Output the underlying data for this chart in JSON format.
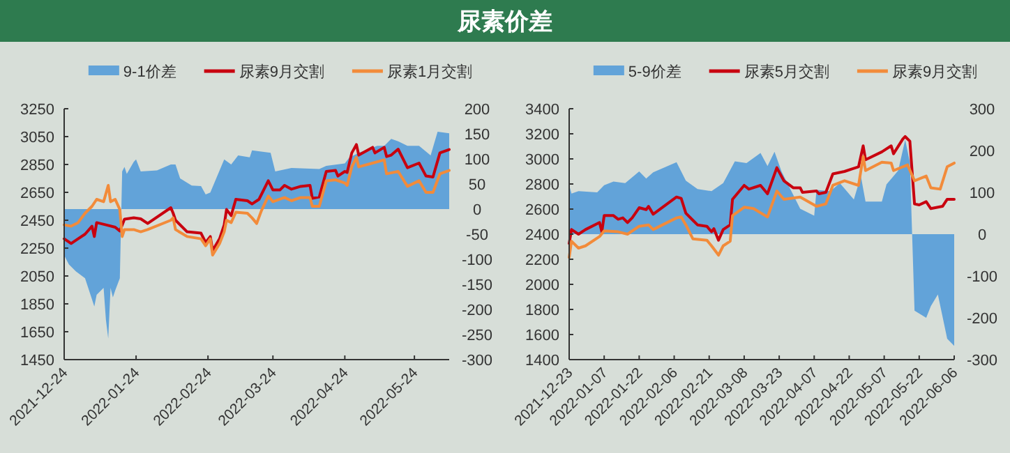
{
  "chart_data": [
    {
      "type": "line",
      "title": "尿素价差",
      "legend": "top",
      "xlim": [
        "2021-12-24",
        "2022-06-08"
      ],
      "xticks": [
        "2021-12-24",
        "2022-01-24",
        "2022-02-24",
        "2022-03-24",
        "2022-04-24",
        "2022-05-24"
      ],
      "ylim": [
        1450,
        3250
      ],
      "yticks": [
        1450,
        1650,
        1850,
        2050,
        2250,
        2450,
        2650,
        2850,
        3050,
        3250
      ],
      "y2lim": [
        -300,
        200
      ],
      "y2ticks": [
        -300,
        -250,
        -200,
        -150,
        -100,
        -50,
        0,
        50,
        100,
        150,
        200
      ],
      "series": [
        {
          "name": "9-1价差",
          "type": "area",
          "axis": "y2",
          "color": "#62a3d9",
          "x": [
            "2021-12-24",
            "2021-12-26",
            "2021-12-29",
            "2022-01-02",
            "2022-01-04",
            "2022-01-06",
            "2022-01-07",
            "2022-01-10",
            "2022-01-11",
            "2022-01-12",
            "2022-01-13",
            "2022-01-14",
            "2022-01-15",
            "2022-01-17",
            "2022-01-18",
            "2022-01-19",
            "2022-01-20",
            "2022-01-23",
            "2022-01-24",
            "2022-01-26",
            "2022-02-02",
            "2022-02-08",
            "2022-02-10",
            "2022-02-12",
            "2022-02-17",
            "2022-02-21",
            "2022-02-23",
            "2022-02-25",
            "2022-03-03",
            "2022-03-06",
            "2022-03-09",
            "2022-03-14",
            "2022-03-15",
            "2022-03-23",
            "2022-03-25",
            "2022-04-01",
            "2022-04-13",
            "2022-04-16",
            "2022-04-24",
            "2022-04-26",
            "2022-04-30",
            "2022-05-08",
            "2022-05-11",
            "2022-05-14",
            "2022-05-17",
            "2022-05-21",
            "2022-05-26",
            "2022-05-31",
            "2022-06-03",
            "2022-06-08"
          ],
          "values": [
            -92,
            -110,
            -124,
            -138,
            -166,
            -194,
            -171,
            -157,
            -221,
            -258,
            -157,
            -176,
            -162,
            -138,
            75,
            84,
            70,
            94,
            99,
            75,
            77,
            89,
            89,
            61,
            47,
            46,
            29,
            33,
            99,
            89,
            107,
            103,
            117,
            112,
            75,
            82,
            80,
            86,
            91,
            103,
            112,
            126,
            126,
            140,
            135,
            126,
            126,
            107,
            154,
            151
          ]
        },
        {
          "name": "尿素9月交割",
          "color": "#c8000f",
          "x": [
            "2021-12-24",
            "2021-12-27",
            "2021-12-30",
            "2022-01-02",
            "2022-01-05",
            "2022-01-06",
            "2022-01-07",
            "2022-01-11",
            "2022-01-15",
            "2022-01-17",
            "2022-01-19",
            "2022-01-23",
            "2022-01-26",
            "2022-01-29",
            "2022-02-08",
            "2022-02-09",
            "2022-02-10",
            "2022-02-15",
            "2022-02-21",
            "2022-02-23",
            "2022-02-25",
            "2022-02-26",
            "2022-03-01",
            "2022-03-03",
            "2022-03-04",
            "2022-03-06",
            "2022-03-08",
            "2022-03-13",
            "2022-03-15",
            "2022-03-18",
            "2022-03-22",
            "2022-03-24",
            "2022-03-27",
            "2022-03-29",
            "2022-04-01",
            "2022-04-05",
            "2022-04-09",
            "2022-04-10",
            "2022-04-13",
            "2022-04-16",
            "2022-04-20",
            "2022-04-21",
            "2022-04-24",
            "2022-04-25",
            "2022-04-27",
            "2022-04-29",
            "2022-04-30",
            "2022-05-06",
            "2022-05-07",
            "2022-05-11",
            "2022-05-12",
            "2022-05-14",
            "2022-05-17",
            "2022-05-21",
            "2022-05-26",
            "2022-05-29",
            "2022-06-01",
            "2022-06-04",
            "2022-06-08"
          ],
          "values": [
            2317,
            2283,
            2317,
            2350,
            2407,
            2333,
            2433,
            2417,
            2400,
            2373,
            2457,
            2467,
            2460,
            2427,
            2540,
            2500,
            2450,
            2367,
            2357,
            2290,
            2333,
            2233,
            2317,
            2417,
            2527,
            2483,
            2600,
            2590,
            2567,
            2600,
            2733,
            2667,
            2667,
            2700,
            2673,
            2693,
            2700,
            2607,
            2617,
            2800,
            2807,
            2767,
            2800,
            2793,
            2933,
            2993,
            2917,
            2973,
            2933,
            2973,
            2907,
            2917,
            2960,
            2827,
            2860,
            2767,
            2760,
            2933,
            2957
          ]
        },
        {
          "name": "尿素1月交割",
          "color": "#f28b3a",
          "x": [
            "2021-12-24",
            "2021-12-27",
            "2021-12-30",
            "2022-01-02",
            "2022-01-05",
            "2022-01-07",
            "2022-01-10",
            "2022-01-12",
            "2022-01-13",
            "2022-01-15",
            "2022-01-17",
            "2022-01-18",
            "2022-01-19",
            "2022-01-23",
            "2022-01-26",
            "2022-01-29",
            "2022-02-08",
            "2022-02-09",
            "2022-02-10",
            "2022-02-15",
            "2022-02-21",
            "2022-02-23",
            "2022-02-25",
            "2022-02-26",
            "2022-03-01",
            "2022-03-03",
            "2022-03-04",
            "2022-03-06",
            "2022-03-08",
            "2022-03-13",
            "2022-03-15",
            "2022-03-17",
            "2022-03-19",
            "2022-03-22",
            "2022-03-24",
            "2022-03-29",
            "2022-04-01",
            "2022-04-05",
            "2022-04-09",
            "2022-04-10",
            "2022-04-13",
            "2022-04-16",
            "2022-04-20",
            "2022-04-24",
            "2022-04-25",
            "2022-04-27",
            "2022-04-29",
            "2022-04-30",
            "2022-05-06",
            "2022-05-11",
            "2022-05-12",
            "2022-05-17",
            "2022-05-21",
            "2022-05-26",
            "2022-05-29",
            "2022-06-01",
            "2022-06-04",
            "2022-06-08"
          ],
          "values": [
            2417,
            2407,
            2433,
            2500,
            2550,
            2600,
            2583,
            2700,
            2583,
            2600,
            2527,
            2333,
            2383,
            2383,
            2367,
            2383,
            2450,
            2467,
            2383,
            2333,
            2317,
            2267,
            2317,
            2200,
            2283,
            2367,
            2450,
            2433,
            2507,
            2500,
            2467,
            2427,
            2517,
            2623,
            2583,
            2613,
            2590,
            2613,
            2613,
            2550,
            2550,
            2733,
            2740,
            2717,
            2700,
            2833,
            2900,
            2833,
            2860,
            2883,
            2783,
            2800,
            2693,
            2733,
            2650,
            2650,
            2783,
            2807
          ]
        }
      ]
    },
    {
      "type": "line",
      "legend": "top",
      "xlim": [
        "2021-12-23",
        "2022-06-06"
      ],
      "xticks": [
        "2021-12-23",
        "2022-01-07",
        "2022-01-22",
        "2022-02-06",
        "2022-02-21",
        "2022-03-08",
        "2022-03-23",
        "2022-04-07",
        "2022-04-22",
        "2022-05-07",
        "2022-05-22",
        "2022-06-06"
      ],
      "ylim": [
        1400,
        3400
      ],
      "yticks": [
        1400,
        1600,
        1800,
        2000,
        2200,
        2400,
        2600,
        2800,
        3000,
        3200,
        3400
      ],
      "y2lim": [
        -300,
        300
      ],
      "y2ticks": [
        -300,
        -200,
        -100,
        0,
        100,
        200,
        300
      ],
      "series": [
        {
          "name": "5-9价差",
          "type": "area",
          "axis": "y2",
          "color": "#62a3d9",
          "x": [
            "2021-12-23",
            "2021-12-24",
            "2021-12-27",
            "2022-01-04",
            "2022-01-07",
            "2022-01-11",
            "2022-01-16",
            "2022-01-22",
            "2022-01-25",
            "2022-01-28",
            "2022-02-07",
            "2022-02-11",
            "2022-02-16",
            "2022-02-22",
            "2022-02-27",
            "2022-03-04",
            "2022-03-09",
            "2022-03-15",
            "2022-03-18",
            "2022-03-21",
            "2022-03-24",
            "2022-04-01",
            "2022-04-07",
            "2022-04-08",
            "2022-04-14",
            "2022-04-18",
            "2022-04-24",
            "2022-04-27",
            "2022-04-29",
            "2022-05-06",
            "2022-05-08",
            "2022-05-13",
            "2022-05-16",
            "2022-05-18",
            "2022-05-20",
            "2022-05-25",
            "2022-05-27",
            "2022-05-30",
            "2022-06-03",
            "2022-06-06"
          ],
          "values": [
            117,
            97,
            103,
            100,
            117,
            126,
            122,
            150,
            133,
            148,
            172,
            128,
            108,
            103,
            122,
            174,
            170,
            194,
            163,
            197,
            150,
            61,
            44,
            106,
            103,
            122,
            83,
            139,
            78,
            78,
            119,
            152,
            226,
            172,
            -183,
            -200,
            -172,
            -144,
            -250,
            -267
          ]
        },
        {
          "name": "尿素5月交割",
          "color": "#c8000f",
          "x": [
            "2021-12-23",
            "2021-12-24",
            "2021-12-27",
            "2021-12-30",
            "2022-01-05",
            "2022-01-06",
            "2022-01-07",
            "2022-01-11",
            "2022-01-13",
            "2022-01-15",
            "2022-01-17",
            "2022-01-19",
            "2022-01-22",
            "2022-01-25",
            "2022-01-26",
            "2022-01-28",
            "2022-02-07",
            "2022-02-09",
            "2022-02-11",
            "2022-02-14",
            "2022-02-16",
            "2022-02-20",
            "2022-02-22",
            "2022-02-23",
            "2022-02-25",
            "2022-02-27",
            "2022-03-02",
            "2022-03-03",
            "2022-03-08",
            "2022-03-10",
            "2022-03-15",
            "2022-03-18",
            "2022-03-22",
            "2022-03-25",
            "2022-03-29",
            "2022-04-01",
            "2022-04-02",
            "2022-04-08",
            "2022-04-09",
            "2022-04-12",
            "2022-04-15",
            "2022-04-20",
            "2022-04-23",
            "2022-04-26",
            "2022-04-28",
            "2022-04-29",
            "2022-05-06",
            "2022-05-10",
            "2022-05-11",
            "2022-05-15",
            "2022-05-16",
            "2022-05-18",
            "2022-05-20",
            "2022-05-22",
            "2022-05-25",
            "2022-05-27",
            "2022-06-01",
            "2022-06-03",
            "2022-06-06"
          ],
          "values": [
            2326,
            2437,
            2400,
            2437,
            2493,
            2419,
            2548,
            2548,
            2519,
            2530,
            2493,
            2530,
            2611,
            2596,
            2622,
            2559,
            2696,
            2685,
            2567,
            2511,
            2474,
            2463,
            2419,
            2444,
            2352,
            2437,
            2474,
            2678,
            2789,
            2759,
            2789,
            2722,
            2930,
            2826,
            2770,
            2770,
            2733,
            2744,
            2722,
            2733,
            2881,
            2900,
            2919,
            2937,
            3104,
            2993,
            3056,
            3104,
            3041,
            3159,
            3178,
            3141,
            2641,
            2633,
            2659,
            2604,
            2622,
            2678,
            2678
          ]
        },
        {
          "name": "尿素9月交割",
          "color": "#f28b3a",
          "x": [
            "2021-12-23",
            "2021-12-24",
            "2021-12-27",
            "2021-12-30",
            "2022-01-05",
            "2022-01-07",
            "2022-01-13",
            "2022-01-17",
            "2022-01-22",
            "2022-01-26",
            "2022-01-28",
            "2022-02-07",
            "2022-02-09",
            "2022-02-11",
            "2022-02-14",
            "2022-02-20",
            "2022-02-22",
            "2022-02-25",
            "2022-02-27",
            "2022-03-02",
            "2022-03-03",
            "2022-03-08",
            "2022-03-12",
            "2022-03-18",
            "2022-03-22",
            "2022-03-25",
            "2022-04-01",
            "2022-04-08",
            "2022-04-12",
            "2022-04-15",
            "2022-04-20",
            "2022-04-26",
            "2022-04-28",
            "2022-04-29",
            "2022-05-06",
            "2022-05-10",
            "2022-05-11",
            "2022-05-17",
            "2022-05-20",
            "2022-05-25",
            "2022-05-27",
            "2022-05-31",
            "2022-06-03",
            "2022-06-06"
          ],
          "values": [
            2215,
            2344,
            2289,
            2307,
            2381,
            2426,
            2419,
            2400,
            2463,
            2474,
            2437,
            2530,
            2537,
            2474,
            2363,
            2352,
            2307,
            2233,
            2307,
            2344,
            2548,
            2615,
            2604,
            2537,
            2744,
            2678,
            2696,
            2622,
            2641,
            2789,
            2826,
            2789,
            3019,
            2907,
            2974,
            2967,
            2907,
            2952,
            2826,
            2863,
            2770,
            2759,
            2937,
            2967
          ]
        }
      ]
    }
  ]
}
